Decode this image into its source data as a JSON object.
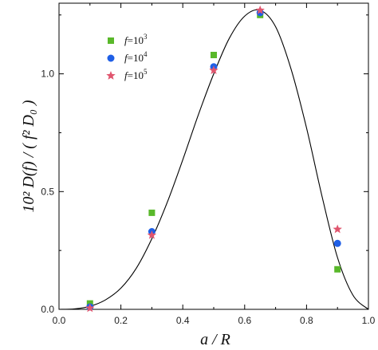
{
  "chart_data": {
    "type": "scatter",
    "title": "",
    "xlabel": "a / R",
    "ylabel": "10² D(f) / ( f² D₀ )",
    "xlim": [
      0.0,
      1.0
    ],
    "ylim": [
      0.0,
      1.3
    ],
    "x_ticks": [
      0.0,
      0.2,
      0.4,
      0.6,
      0.8,
      1.0
    ],
    "y_ticks": [
      0.0,
      0.5,
      1.0
    ],
    "x_tick_labels": [
      "0.0",
      "0.2",
      "0.4",
      "0.6",
      "0.8",
      "1.0"
    ],
    "y_tick_labels": [
      "0.0",
      "0.5",
      "1.0"
    ],
    "grid": false,
    "legend_position": "top-left",
    "series": [
      {
        "name": "f=10^3",
        "marker": "square",
        "color": "#59b82a",
        "x": [
          0.1,
          0.3,
          0.5,
          0.65,
          0.9
        ],
        "y": [
          0.025,
          0.41,
          1.08,
          1.25,
          0.17
        ]
      },
      {
        "name": "f=10^4",
        "marker": "circle",
        "color": "#1f5fe6",
        "x": [
          0.1,
          0.3,
          0.5,
          0.65,
          0.9
        ],
        "y": [
          0.01,
          0.33,
          1.03,
          1.26,
          0.28
        ]
      },
      {
        "name": "f=10^5",
        "marker": "star",
        "color": "#e0556e",
        "x": [
          0.1,
          0.3,
          0.5,
          0.65,
          0.9
        ],
        "y": [
          0.005,
          0.315,
          1.015,
          1.27,
          0.34
        ]
      },
      {
        "name": "",
        "type": "line",
        "color": "#000000",
        "x": [
          0.0,
          0.05,
          0.1,
          0.15,
          0.2,
          0.25,
          0.3,
          0.35,
          0.4,
          0.45,
          0.5,
          0.55,
          0.6,
          0.65,
          0.7,
          0.75,
          0.8,
          0.85,
          0.9,
          0.95,
          1.0
        ],
        "y": [
          0.0,
          0.002,
          0.013,
          0.04,
          0.09,
          0.175,
          0.3,
          0.455,
          0.635,
          0.825,
          1.0,
          1.15,
          1.245,
          1.27,
          1.2,
          1.02,
          0.77,
          0.48,
          0.22,
          0.06,
          0.0
        ]
      }
    ],
    "legend": [
      {
        "base": "f",
        "eq": "=10",
        "exp": "3"
      },
      {
        "base": "f",
        "eq": "=10",
        "exp": "4"
      },
      {
        "base": "f",
        "eq": "=10",
        "exp": "5"
      }
    ]
  }
}
